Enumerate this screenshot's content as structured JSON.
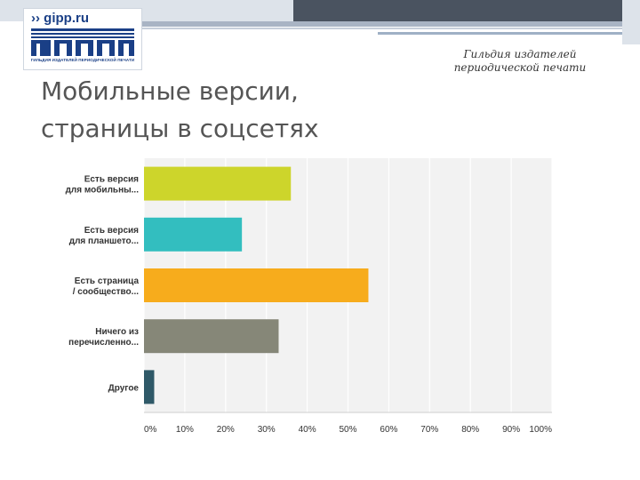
{
  "header": {
    "logo_text": "›› gipp.ru",
    "logo_subtitle": "ГИЛЬДИЯ ИЗДАТЕЛЕЙ ПЕРИОДИЧЕСКОЙ ПЕЧАТИ",
    "org_line1": "Гильдия издателей",
    "org_line2": "периодической печати"
  },
  "slide": {
    "title_line1": "Мобильные версии,",
    "title_line2": "страницы в соцсетях"
  },
  "chart_data": {
    "type": "bar",
    "orientation": "horizontal",
    "categories": [
      [
        "Есть версия",
        "для мобильны..."
      ],
      [
        "Есть версия",
        "для планшето..."
      ],
      [
        "Есть страница",
        "/ сообщество..."
      ],
      [
        "Ничего из",
        "перечисленно..."
      ],
      [
        "Другое"
      ]
    ],
    "values": [
      36,
      24,
      55,
      33,
      2.5
    ],
    "colors": [
      "#cdd52b",
      "#33bebf",
      "#f7ac1c",
      "#868778",
      "#2f5968"
    ],
    "xlim": [
      0,
      100
    ],
    "xticks": [
      "0%",
      "10%",
      "20%",
      "30%",
      "40%",
      "50%",
      "60%",
      "70%",
      "80%",
      "90%",
      "100%"
    ],
    "grid": true,
    "background": "#f2f2f2"
  }
}
